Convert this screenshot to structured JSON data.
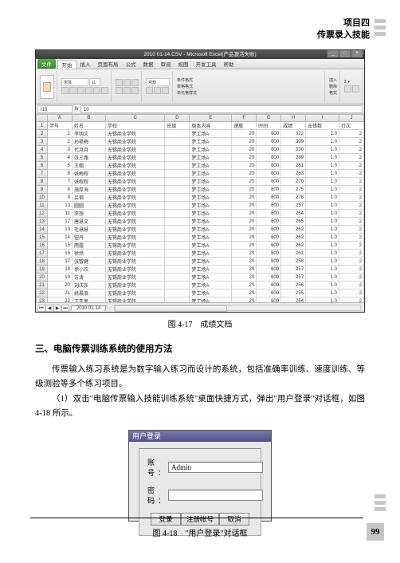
{
  "header": {
    "title_line1": "项目四",
    "title_line2": "传票录入技能"
  },
  "excel": {
    "title": "2010 01-14.CSV - Microsoft Excel(产品激活失败)",
    "menus": {
      "file": "文件",
      "items": [
        "开始",
        "插入",
        "页面布局",
        "公式",
        "数据",
        "审阅",
        "视图",
        "开发工具",
        "帮助"
      ]
    },
    "paste": "粘贴",
    "font_name": "宋体",
    "font_size": "11",
    "style_label": "样式",
    "cond_fmt": "条件格式",
    "as_table": "表格格式",
    "cell_style": "单元格样式",
    "insert": "插入",
    "delete": "删除",
    "format": "格式",
    "sort_filter": "排序和筛选",
    "find_select": "查找和选择",
    "namebox": "I15",
    "fxval": "10",
    "cols": [
      "A",
      "B",
      "C",
      "D",
      "E",
      "F",
      "G",
      "H",
      "I",
      "J"
    ],
    "header_row": [
      "学号",
      "姓名",
      "学校",
      "班级",
      "版本内容",
      "速度",
      "时间",
      "成绩",
      "出错数",
      "行次"
    ],
    "data": [
      [
        "1",
        "李明文",
        "无锡商业学院",
        "",
        "梦工场A",
        "20",
        "600",
        "322",
        "1.0",
        "2"
      ],
      [
        "2",
        "孙艳梅",
        "无锡商业学院",
        "",
        "梦工场A",
        "20",
        "600",
        "309",
        "1.0",
        "2"
      ],
      [
        "3",
        "代月月",
        "无锡商业学院",
        "",
        "梦工场A",
        "20",
        "600",
        "330",
        "1.0",
        "2"
      ],
      [
        "4",
        "张三路",
        "无锡商业学院",
        "",
        "梦工场A",
        "20",
        "600",
        "289",
        "1.0",
        "2"
      ],
      [
        "5",
        "王翰",
        "无锡商业学院",
        "",
        "梦工场A",
        "20",
        "600",
        "281",
        "1.0",
        "2"
      ],
      [
        "6",
        "张梅程",
        "无锡商业学院",
        "",
        "梦工场A",
        "20",
        "600",
        "263",
        "1.0",
        "2"
      ],
      [
        "7",
        "张程程",
        "无锡商业学院",
        "",
        "梦工场A",
        "20",
        "600",
        "270",
        "1.0",
        "2"
      ],
      [
        "8",
        "施厚海",
        "无锡商业学院",
        "",
        "梦工场A",
        "20",
        "600",
        "275",
        "1.0",
        "2"
      ],
      [
        "9",
        "吕钢",
        "无锡商业学院",
        "",
        "梦工场A",
        "20",
        "600",
        "278",
        "1.0",
        "2"
      ],
      [
        "10",
        "圆圆",
        "无锡商业学院",
        "",
        "梦工场A",
        "20",
        "600",
        "257",
        "1.0",
        "2"
      ],
      [
        "11",
        "李想",
        "无锡商业学院",
        "",
        "梦工场A",
        "20",
        "600",
        "264",
        "1.0",
        "2"
      ],
      [
        "12",
        "唐慧文",
        "无锡商业学院",
        "",
        "梦工场A",
        "20",
        "600",
        "265",
        "1.0",
        "2"
      ],
      [
        "13",
        "毛慧慧",
        "无锡商业学院",
        "",
        "梦工场A",
        "20",
        "600",
        "262",
        "1.0",
        "2"
      ],
      [
        "14",
        "钮丹",
        "无锡商业学院",
        "",
        "梦工场A",
        "20",
        "600",
        "262",
        "1.0",
        "2"
      ],
      [
        "15",
        "雨露",
        "无锡商业学院",
        "",
        "梦工场A",
        "20",
        "600",
        "262",
        "1.0",
        "2"
      ],
      [
        "16",
        "徐然",
        "无锡商业学院",
        "",
        "梦工场A",
        "20",
        "600",
        "261",
        "1.0",
        "2"
      ],
      [
        "17",
        "张智健",
        "无锡商业学院",
        "",
        "梦工场A",
        "20",
        "600",
        "258",
        "1.0",
        "2"
      ],
      [
        "18",
        "徐小欢",
        "无锡商业学院",
        "",
        "梦工场A",
        "20",
        "600",
        "257",
        "1.0",
        "2"
      ],
      [
        "19",
        "方涛",
        "无锡商业学院",
        "",
        "梦工场A",
        "20",
        "600",
        "257",
        "1.0",
        "2"
      ],
      [
        "20",
        "刘庆东",
        "无锡商业学院",
        "",
        "梦工场A",
        "20",
        "600",
        "256",
        "1.0",
        "2"
      ],
      [
        "21",
        "姚晨浪",
        "无锡商业学院",
        "",
        "梦工场A",
        "20",
        "600",
        "255",
        "1.0",
        "2"
      ],
      [
        "22",
        "王亚男",
        "无锡商业学院",
        "",
        "梦工场A",
        "20",
        "600",
        "254",
        "1.0",
        "2"
      ],
      [
        "23",
        "许佳丽",
        "无锡商业学院",
        "",
        "梦工场A",
        "20",
        "600",
        "254",
        "1.0",
        "2"
      ],
      [
        "24",
        "于文明",
        "无锡商业学院",
        "",
        "梦工场A",
        "20",
        "600",
        "253",
        "1.0",
        "2"
      ],
      [
        "25",
        "罗赛建",
        "无锡商业学院",
        "",
        "梦工场A",
        "20",
        "600",
        "252",
        "1.0",
        "2"
      ],
      [
        "26",
        "刘丹琴",
        "无锡商业学院",
        "",
        "梦工场A",
        "20",
        "600",
        "252",
        "1.0",
        "2"
      ],
      [
        "27",
        "叶文佳",
        "无锡商业学院",
        "",
        "梦工场A",
        "20",
        "600",
        "252",
        "1.0",
        "2"
      ],
      [
        "28",
        "土林",
        "无锡商业学院",
        "",
        "梦工场A",
        "20",
        "600",
        "252",
        "1.0",
        "2"
      ],
      [
        "29",
        "朱静静",
        "无锡商业学院",
        "",
        "梦工场A",
        "20",
        "600",
        "250",
        "1.0",
        "2"
      ],
      [
        "30",
        "陈梦佳",
        "无锡商业学院",
        "",
        "梦工场A",
        "20",
        "600",
        "250",
        "1.0",
        "2"
      ],
      [
        "31",
        "侯玲玲",
        "无锡商业学院",
        "",
        "梦工场A",
        "20",
        "600",
        "250",
        "1.0",
        "2"
      ]
    ],
    "sheet_tab": "2010 01-14"
  },
  "caption1": "图 4-17　成绩文档",
  "section": "三、电脑传票训练系统的使用方法",
  "para1": "传票输入练习系统是为数字输入练习而设计的系统，包括准确率训练、速度训练、等级测验等多个练习项目。",
  "para2": "（1）双击\"电脑传票输入技能训练系统\"桌面快捷方式，弹出\"用户登录\"对话框，如图 4-18 所示。",
  "login": {
    "title": "用户登录",
    "account_label": "账　号：",
    "account_value": "Admin",
    "password_label": "密　码：",
    "btn_login": "登录",
    "btn_reg": "注册帐号",
    "btn_cancel": "取消"
  },
  "caption2": "图 4-18　\"用户登录\"对话框",
  "pagenum": "99"
}
